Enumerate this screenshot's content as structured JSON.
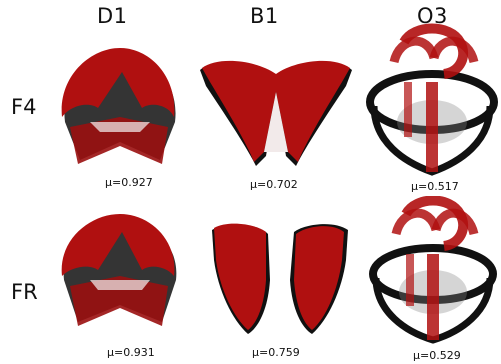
{
  "columns": [
    "D1",
    "B1",
    "O3"
  ],
  "rows": [
    {
      "label": "F4",
      "values": [
        "μ=0.927",
        "μ=0.702",
        "μ=0.517"
      ]
    },
    {
      "label": "FR",
      "values": [
        "μ=0.931",
        "μ=0.759",
        "μ=0.529"
      ]
    }
  ],
  "colors": {
    "red": "#b01010",
    "dark_red": "#7a0a0a",
    "black": "#111111",
    "gray": "#777777"
  }
}
